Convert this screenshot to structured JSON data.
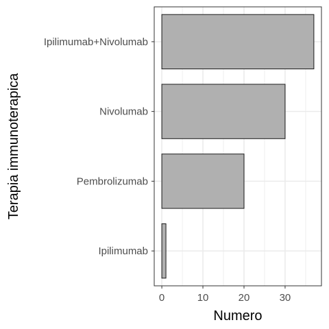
{
  "chart_data": {
    "type": "bar",
    "orientation": "horizontal",
    "title": "",
    "xlabel": "Numero",
    "ylabel": "Terapia immunoterapica",
    "categories": [
      "Ipilimumab",
      "Pembrolizumab",
      "Nivolumab",
      "Ipilimumab+Nivolumab"
    ],
    "values": [
      1,
      20,
      30,
      37
    ],
    "xlim": [
      -1.85,
      38.85
    ],
    "xticks": [
      0,
      10,
      20,
      30
    ],
    "grid": true,
    "legend": "none",
    "bar_fill": "#b0b0b0",
    "bar_stroke": "#1a1a1a",
    "grid_color": "#ebebeb"
  }
}
